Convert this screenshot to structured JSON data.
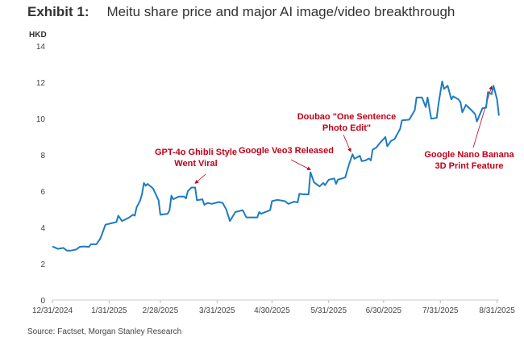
{
  "title": {
    "exhibit": "Exhibit 1:",
    "text": "Meitu share price and major AI image/video breakthrough"
  },
  "source": "Source: Factset, Morgan Stanley Research",
  "chart_data": {
    "type": "line",
    "title": "Meitu share price and major AI image/video breakthrough",
    "ylabel": "HKD",
    "xlabel": "",
    "ylim": [
      0,
      14
    ],
    "yticks": [
      0,
      2,
      4,
      6,
      8,
      10,
      12,
      14
    ],
    "xlim_days": [
      0,
      244
    ],
    "x_unit": "days since 12/31/2024",
    "xticks": [
      {
        "day": 0,
        "label": "12/31/2024"
      },
      {
        "day": 31,
        "label": "1/31/2025"
      },
      {
        "day": 59,
        "label": "2/28/2025"
      },
      {
        "day": 90,
        "label": "3/31/2025"
      },
      {
        "day": 120,
        "label": "4/30/2025"
      },
      {
        "day": 151,
        "label": "5/31/2025"
      },
      {
        "day": 181,
        "label": "6/30/2025"
      },
      {
        "day": 212,
        "label": "7/31/2025"
      },
      {
        "day": 243,
        "label": "8/31/2025"
      }
    ],
    "grid": false,
    "line_color": "#1f7bbf",
    "annotation_color": "#c00018",
    "series": [
      {
        "name": "Meitu share price (HKD)",
        "x": [
          0,
          3,
          6,
          8,
          10,
          13,
          15,
          17,
          20,
          21,
          24,
          26,
          27,
          29,
          33,
          35,
          36,
          37,
          38,
          42,
          44,
          45,
          46,
          48,
          49,
          50,
          51,
          52,
          55,
          58,
          59,
          63,
          64,
          65,
          66,
          69,
          72,
          73,
          74,
          76,
          78,
          79,
          82,
          83,
          85,
          87,
          91,
          93,
          95,
          97,
          100,
          104,
          106,
          112,
          113,
          114,
          119,
          120,
          123,
          127,
          129,
          132,
          134,
          135,
          137,
          140,
          141,
          143,
          146,
          148,
          149,
          151,
          154,
          155,
          156,
          160,
          162,
          164,
          165,
          168,
          169,
          171,
          173,
          174,
          175,
          177,
          179,
          182,
          183,
          185,
          187,
          190,
          191,
          195,
          198,
          199,
          202,
          204,
          205,
          207,
          210,
          211,
          213,
          214,
          216,
          218,
          219,
          222,
          223,
          224,
          226,
          229,
          231,
          232,
          235,
          237,
          238,
          240,
          241,
          243,
          244
        ],
        "y": [
          2.95,
          2.82,
          2.87,
          2.72,
          2.72,
          2.78,
          2.93,
          2.95,
          2.93,
          3.07,
          3.07,
          3.35,
          3.6,
          4.15,
          4.25,
          4.3,
          4.65,
          4.5,
          4.35,
          4.55,
          4.7,
          4.65,
          5.1,
          5.5,
          5.85,
          6.45,
          6.3,
          6.4,
          6.15,
          5.5,
          4.7,
          4.75,
          4.95,
          5.75,
          5.55,
          5.7,
          5.7,
          5.6,
          6.0,
          6.2,
          6.2,
          5.5,
          5.55,
          5.25,
          5.35,
          5.3,
          5.4,
          5.35,
          5.0,
          4.35,
          4.85,
          4.95,
          4.55,
          4.55,
          4.85,
          4.75,
          4.95,
          5.45,
          5.52,
          5.45,
          5.3,
          5.42,
          5.38,
          5.86,
          5.82,
          5.82,
          7.04,
          6.48,
          6.26,
          6.45,
          6.33,
          6.63,
          6.7,
          6.4,
          6.63,
          6.75,
          7.44,
          8.03,
          7.78,
          7.95,
          7.66,
          7.69,
          7.8,
          7.69,
          8.29,
          8.4,
          8.66,
          8.98,
          8.47,
          8.76,
          8.87,
          9.43,
          9.9,
          9.94,
          10.46,
          11.16,
          11.16,
          10.63,
          11.16,
          9.99,
          10.04,
          10.82,
          12.05,
          11.63,
          11.81,
          11.05,
          11.22,
          11.05,
          10.9,
          10.34,
          10.75,
          10.46,
          10.24,
          9.84,
          10.57,
          10.6,
          11.46,
          11.34,
          11.81,
          11.05,
          10.16
        ]
      }
    ],
    "annotations": [
      {
        "lines": [
          "GPT-4o Ghibli Style",
          "Went Viral"
        ],
        "target_day": 78,
        "target_value": 6.25
      },
      {
        "lines": [
          "Google Veo3 Released"
        ],
        "target_day": 141,
        "target_value": 7.0
      },
      {
        "lines": [
          "Doubao \"One Sentence",
          "Photo Edit\""
        ],
        "target_day": 163,
        "target_value": 8.0
      },
      {
        "lines": [
          "Google Nano Banana",
          "3D Print Feature"
        ],
        "target_day": 240,
        "target_value": 11.6
      }
    ]
  }
}
